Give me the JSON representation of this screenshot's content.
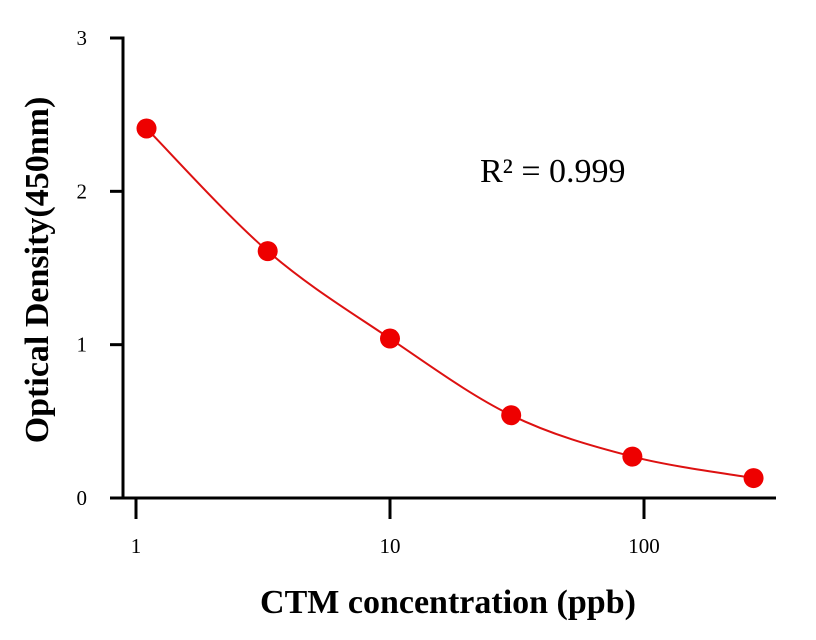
{
  "chart_data": {
    "type": "scatter",
    "xlabel": "CTM concentration (ppb)",
    "ylabel": "Optical Density(450nm)",
    "x_scale": "log",
    "xlim": [
      0.8,
      320
    ],
    "ylim": [
      0,
      3
    ],
    "x_ticks": [
      {
        "value": 1,
        "label": "1"
      },
      {
        "value": 10,
        "label": "10"
      },
      {
        "value": 100,
        "label": "100"
      }
    ],
    "y_ticks": [
      {
        "value": 0,
        "label": "0"
      },
      {
        "value": 1,
        "label": "1"
      },
      {
        "value": 2,
        "label": "2"
      },
      {
        "value": 3,
        "label": "3"
      }
    ],
    "series": [
      {
        "points": [
          {
            "x": 1.1,
            "y": 2.41
          },
          {
            "x": 3.3,
            "y": 1.61
          },
          {
            "x": 10,
            "y": 1.04
          },
          {
            "x": 30,
            "y": 0.54
          },
          {
            "x": 90,
            "y": 0.27
          },
          {
            "x": 270,
            "y": 0.13
          }
        ],
        "color": "#ee0000",
        "fit_line": true,
        "fit_color": "#dd1111"
      }
    ],
    "annotation": "R² = 0.999",
    "grid": false,
    "legend": "none"
  }
}
